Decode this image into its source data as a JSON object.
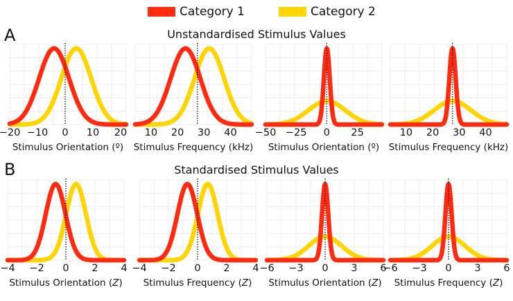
{
  "legend": [
    {
      "label": "Category 1",
      "color": "#ff2a0f"
    },
    {
      "label": "Category 2",
      "color": "#ffd400"
    }
  ],
  "rows": [
    {
      "letter": "A",
      "title": "Unstandardised Stimulus Values"
    },
    {
      "letter": "B",
      "title": "Standardised Stimulus Values"
    }
  ],
  "chart_data": [
    {
      "type": "line",
      "row": "A",
      "xlabel": "Stimulus Orientation (º)",
      "xlabel_italic": "",
      "xlim": [
        -20,
        22
      ],
      "xticks": [
        -20,
        -10,
        0,
        10,
        20
      ],
      "tick_labels": [
        "−20",
        "−10",
        "0",
        "10",
        "20"
      ],
      "boundary": 0,
      "series": [
        {
          "name": "Category 1",
          "mean": -4,
          "sd": 5.4,
          "peak": 1.0
        },
        {
          "name": "Category 2",
          "mean": 4,
          "sd": 5.4,
          "peak": 1.0
        }
      ]
    },
    {
      "type": "line",
      "row": "A",
      "xlabel": "Stimulus Frequency (kHz)",
      "xlabel_italic": "",
      "xlim": [
        4,
        48
      ],
      "xticks": [
        10,
        20,
        30,
        40
      ],
      "tick_labels": [
        "10",
        "20",
        "30",
        "40"
      ],
      "boundary": 27.5,
      "series": [
        {
          "name": "Category 1",
          "mean": 23,
          "sd": 5.6,
          "peak": 1.0
        },
        {
          "name": "Category 2",
          "mean": 32,
          "sd": 5.6,
          "peak": 1.0
        }
      ]
    },
    {
      "type": "line",
      "row": "A",
      "xlabel": "Stimulus Orientation (º)",
      "xlabel_italic": "",
      "xlim": [
        -50,
        45
      ],
      "xticks": [
        -50,
        -25,
        0,
        25
      ],
      "tick_labels": [
        "−50",
        "−25",
        "0",
        "25"
      ],
      "boundary": 0,
      "series": [
        {
          "name": "Category 1",
          "mean": 0,
          "sd": 2.4,
          "peak": 1.0
        },
        {
          "name": "Category 2",
          "mean": 0,
          "sd": 15,
          "peak": 0.31
        }
      ]
    },
    {
      "type": "line",
      "row": "A",
      "xlabel": "Stimulus Frequency (kHz)",
      "xlabel_italic": "",
      "xlim": [
        4,
        48
      ],
      "xticks": [
        10,
        20,
        30,
        40
      ],
      "tick_labels": [
        "10",
        "20",
        "30",
        "40"
      ],
      "boundary": 27.5,
      "series": [
        {
          "name": "Category 1",
          "mean": 27.5,
          "sd": 1.2,
          "peak": 1.0
        },
        {
          "name": "Category 2",
          "mean": 27.5,
          "sd": 7,
          "peak": 0.31
        }
      ]
    },
    {
      "type": "line",
      "row": "B",
      "xlabel": "Stimulus Orientation (",
      "xlabel_italic": "Z",
      "xlabel_end": ")",
      "xlim": [
        -4,
        4
      ],
      "xticks": [
        -4,
        -2,
        0,
        2,
        4
      ],
      "tick_labels": [
        "−4",
        "−2",
        "0",
        "2",
        "4"
      ],
      "boundary": 0,
      "series": [
        {
          "name": "Category 1",
          "mean": -0.7,
          "sd": 0.68,
          "peak": 1.0
        },
        {
          "name": "Category 2",
          "mean": 0.7,
          "sd": 0.68,
          "peak": 1.0
        }
      ]
    },
    {
      "type": "line",
      "row": "B",
      "xlabel": "Stimulus Frequency (",
      "xlabel_italic": "Z",
      "xlabel_end": ")",
      "xlim": [
        -4,
        4
      ],
      "xticks": [
        -4,
        -2,
        0,
        2,
        4
      ],
      "tick_labels": [
        "−4",
        "−2",
        "0",
        "2",
        "4"
      ],
      "boundary": 0,
      "series": [
        {
          "name": "Category 1",
          "mean": -0.7,
          "sd": 0.68,
          "peak": 1.0
        },
        {
          "name": "Category 2",
          "mean": 0.7,
          "sd": 0.68,
          "peak": 1.0
        }
      ]
    },
    {
      "type": "line",
      "row": "B",
      "xlabel": "Stimulus Orientation (",
      "xlabel_italic": "Z",
      "xlabel_end": ")",
      "xlim": [
        -6,
        6
      ],
      "xticks": [
        -6,
        -3,
        0,
        3,
        6
      ],
      "tick_labels": [
        "−6",
        "−3",
        "0",
        "3",
        "6"
      ],
      "boundary": 0,
      "series": [
        {
          "name": "Category 1",
          "mean": 0,
          "sd": 0.32,
          "peak": 1.0
        },
        {
          "name": "Category 2",
          "mean": 0,
          "sd": 1.7,
          "peak": 0.31
        }
      ]
    },
    {
      "type": "line",
      "row": "B",
      "xlabel": "Stimulus Frequency (",
      "xlabel_italic": "Z",
      "xlabel_end": ")",
      "xlim": [
        -6,
        6
      ],
      "xticks": [
        -6,
        -3,
        0,
        3,
        6
      ],
      "tick_labels": [
        "−6",
        "−3",
        "0",
        "3",
        "6"
      ],
      "boundary": 0,
      "series": [
        {
          "name": "Category 1",
          "mean": 0,
          "sd": 0.32,
          "peak": 1.0
        },
        {
          "name": "Category 2",
          "mean": 0,
          "sd": 1.7,
          "peak": 0.31
        }
      ]
    }
  ]
}
